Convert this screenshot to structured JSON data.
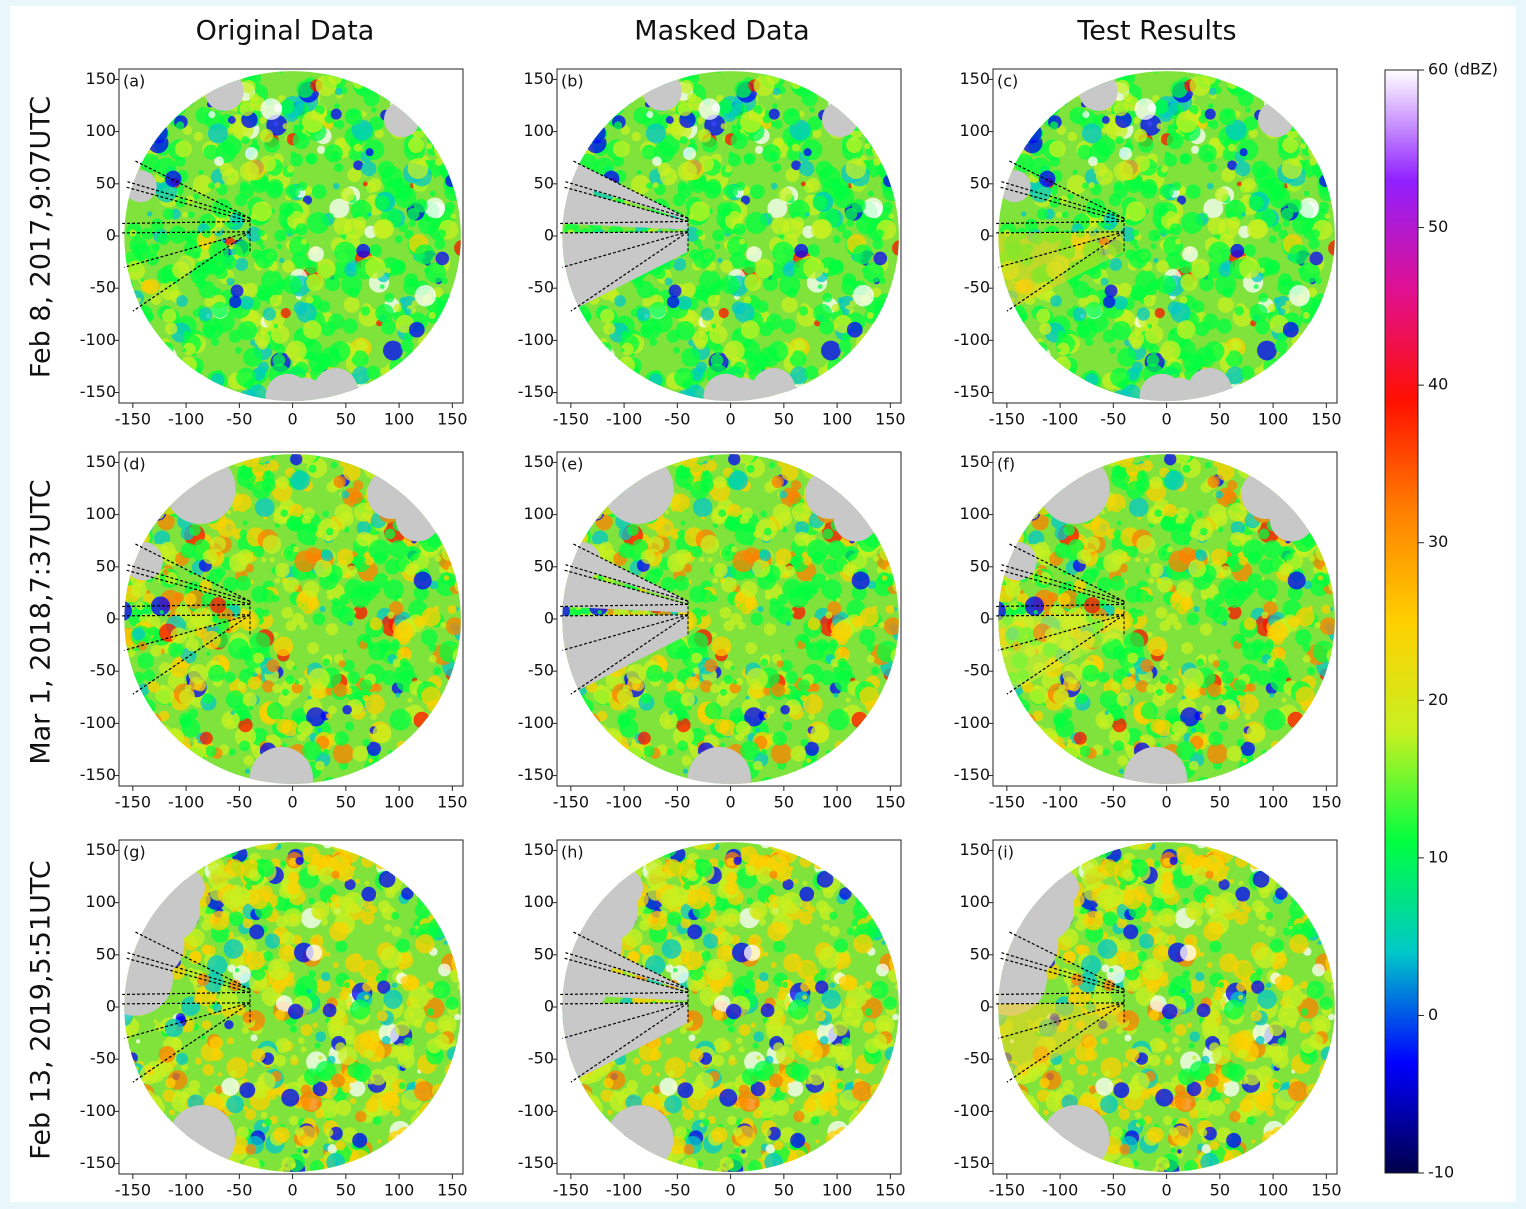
{
  "column_titles": [
    "Original Data",
    "Masked Data",
    "Test Results"
  ],
  "row_labels": [
    "Feb 8, 2017,9:07UTC",
    "Mar 1, 2018,7:37UTC",
    "Feb 13, 2019,5:51UTC"
  ],
  "chart_data": [
    {
      "type": "radar",
      "label": "(a)",
      "xlim": [
        -163,
        160
      ],
      "ylim": [
        -160,
        160
      ],
      "xticks": [
        -150,
        -100,
        -50,
        0,
        50,
        100,
        150
      ],
      "yticks": [
        -150,
        -100,
        -50,
        0,
        50,
        100,
        150
      ]
    },
    {
      "type": "radar",
      "label": "(b)",
      "xlim": [
        -163,
        160
      ],
      "ylim": [
        -160,
        160
      ],
      "xticks": [
        -150,
        -100,
        -50,
        0,
        50,
        100,
        150
      ],
      "yticks": [
        -150,
        -100,
        -50,
        0,
        50,
        100,
        150
      ]
    },
    {
      "type": "radar",
      "label": "(c)",
      "xlim": [
        -163,
        160
      ],
      "ylim": [
        -160,
        160
      ],
      "xticks": [
        -150,
        -100,
        -50,
        0,
        50,
        100,
        150
      ],
      "yticks": [
        -150,
        -100,
        -50,
        0,
        50,
        100,
        150
      ]
    },
    {
      "type": "radar",
      "label": "(d)",
      "xlim": [
        -163,
        160
      ],
      "ylim": [
        -160,
        160
      ],
      "xticks": [
        -150,
        -100,
        -50,
        0,
        50,
        100,
        150
      ],
      "yticks": [
        -150,
        -100,
        -50,
        0,
        50,
        100,
        150
      ]
    },
    {
      "type": "radar",
      "label": "(e)",
      "xlim": [
        -163,
        160
      ],
      "ylim": [
        -160,
        160
      ],
      "xticks": [
        -150,
        -100,
        -50,
        0,
        50,
        100,
        150
      ],
      "yticks": [
        -150,
        -100,
        -50,
        0,
        50,
        100,
        150
      ]
    },
    {
      "type": "radar",
      "label": "(f)",
      "xlim": [
        -163,
        160
      ],
      "ylim": [
        -160,
        160
      ],
      "xticks": [
        -150,
        -100,
        -50,
        0,
        50,
        100,
        150
      ],
      "yticks": [
        -150,
        -100,
        -50,
        0,
        50,
        100,
        150
      ]
    },
    {
      "type": "radar",
      "label": "(g)",
      "xlim": [
        -163,
        160
      ],
      "ylim": [
        -160,
        160
      ],
      "xticks": [
        -150,
        -100,
        -50,
        0,
        50,
        100,
        150
      ],
      "yticks": [
        -150,
        -100,
        -50,
        0,
        50,
        100,
        150
      ]
    },
    {
      "type": "radar",
      "label": "(h)",
      "xlim": [
        -163,
        160
      ],
      "ylim": [
        -160,
        160
      ],
      "xticks": [
        -150,
        -100,
        -50,
        0,
        50,
        100,
        150
      ],
      "yticks": [
        -150,
        -100,
        -50,
        0,
        50,
        100,
        150
      ]
    },
    {
      "type": "radar",
      "label": "(i)",
      "xlim": [
        -163,
        160
      ],
      "ylim": [
        -160,
        160
      ],
      "xticks": [
        -150,
        -100,
        -50,
        0,
        50,
        100,
        150
      ],
      "yticks": [
        -150,
        -100,
        -50,
        0,
        50,
        100,
        150
      ]
    },
    {
      "type": "colorbar",
      "ylim": [
        -10,
        60
      ],
      "yticks": [
        -10,
        0,
        10,
        20,
        30,
        40,
        50,
        {
          "value": 60,
          "label": "60 (dBZ)"
        }
      ],
      "colors": [
        "#00004a",
        "#0000ff",
        "#00c8c8",
        "#00ff40",
        "#c8f020",
        "#ffd000",
        "#ff8000",
        "#ff1000",
        "#e01090",
        "#9020ff",
        "#ffffff"
      ]
    }
  ]
}
